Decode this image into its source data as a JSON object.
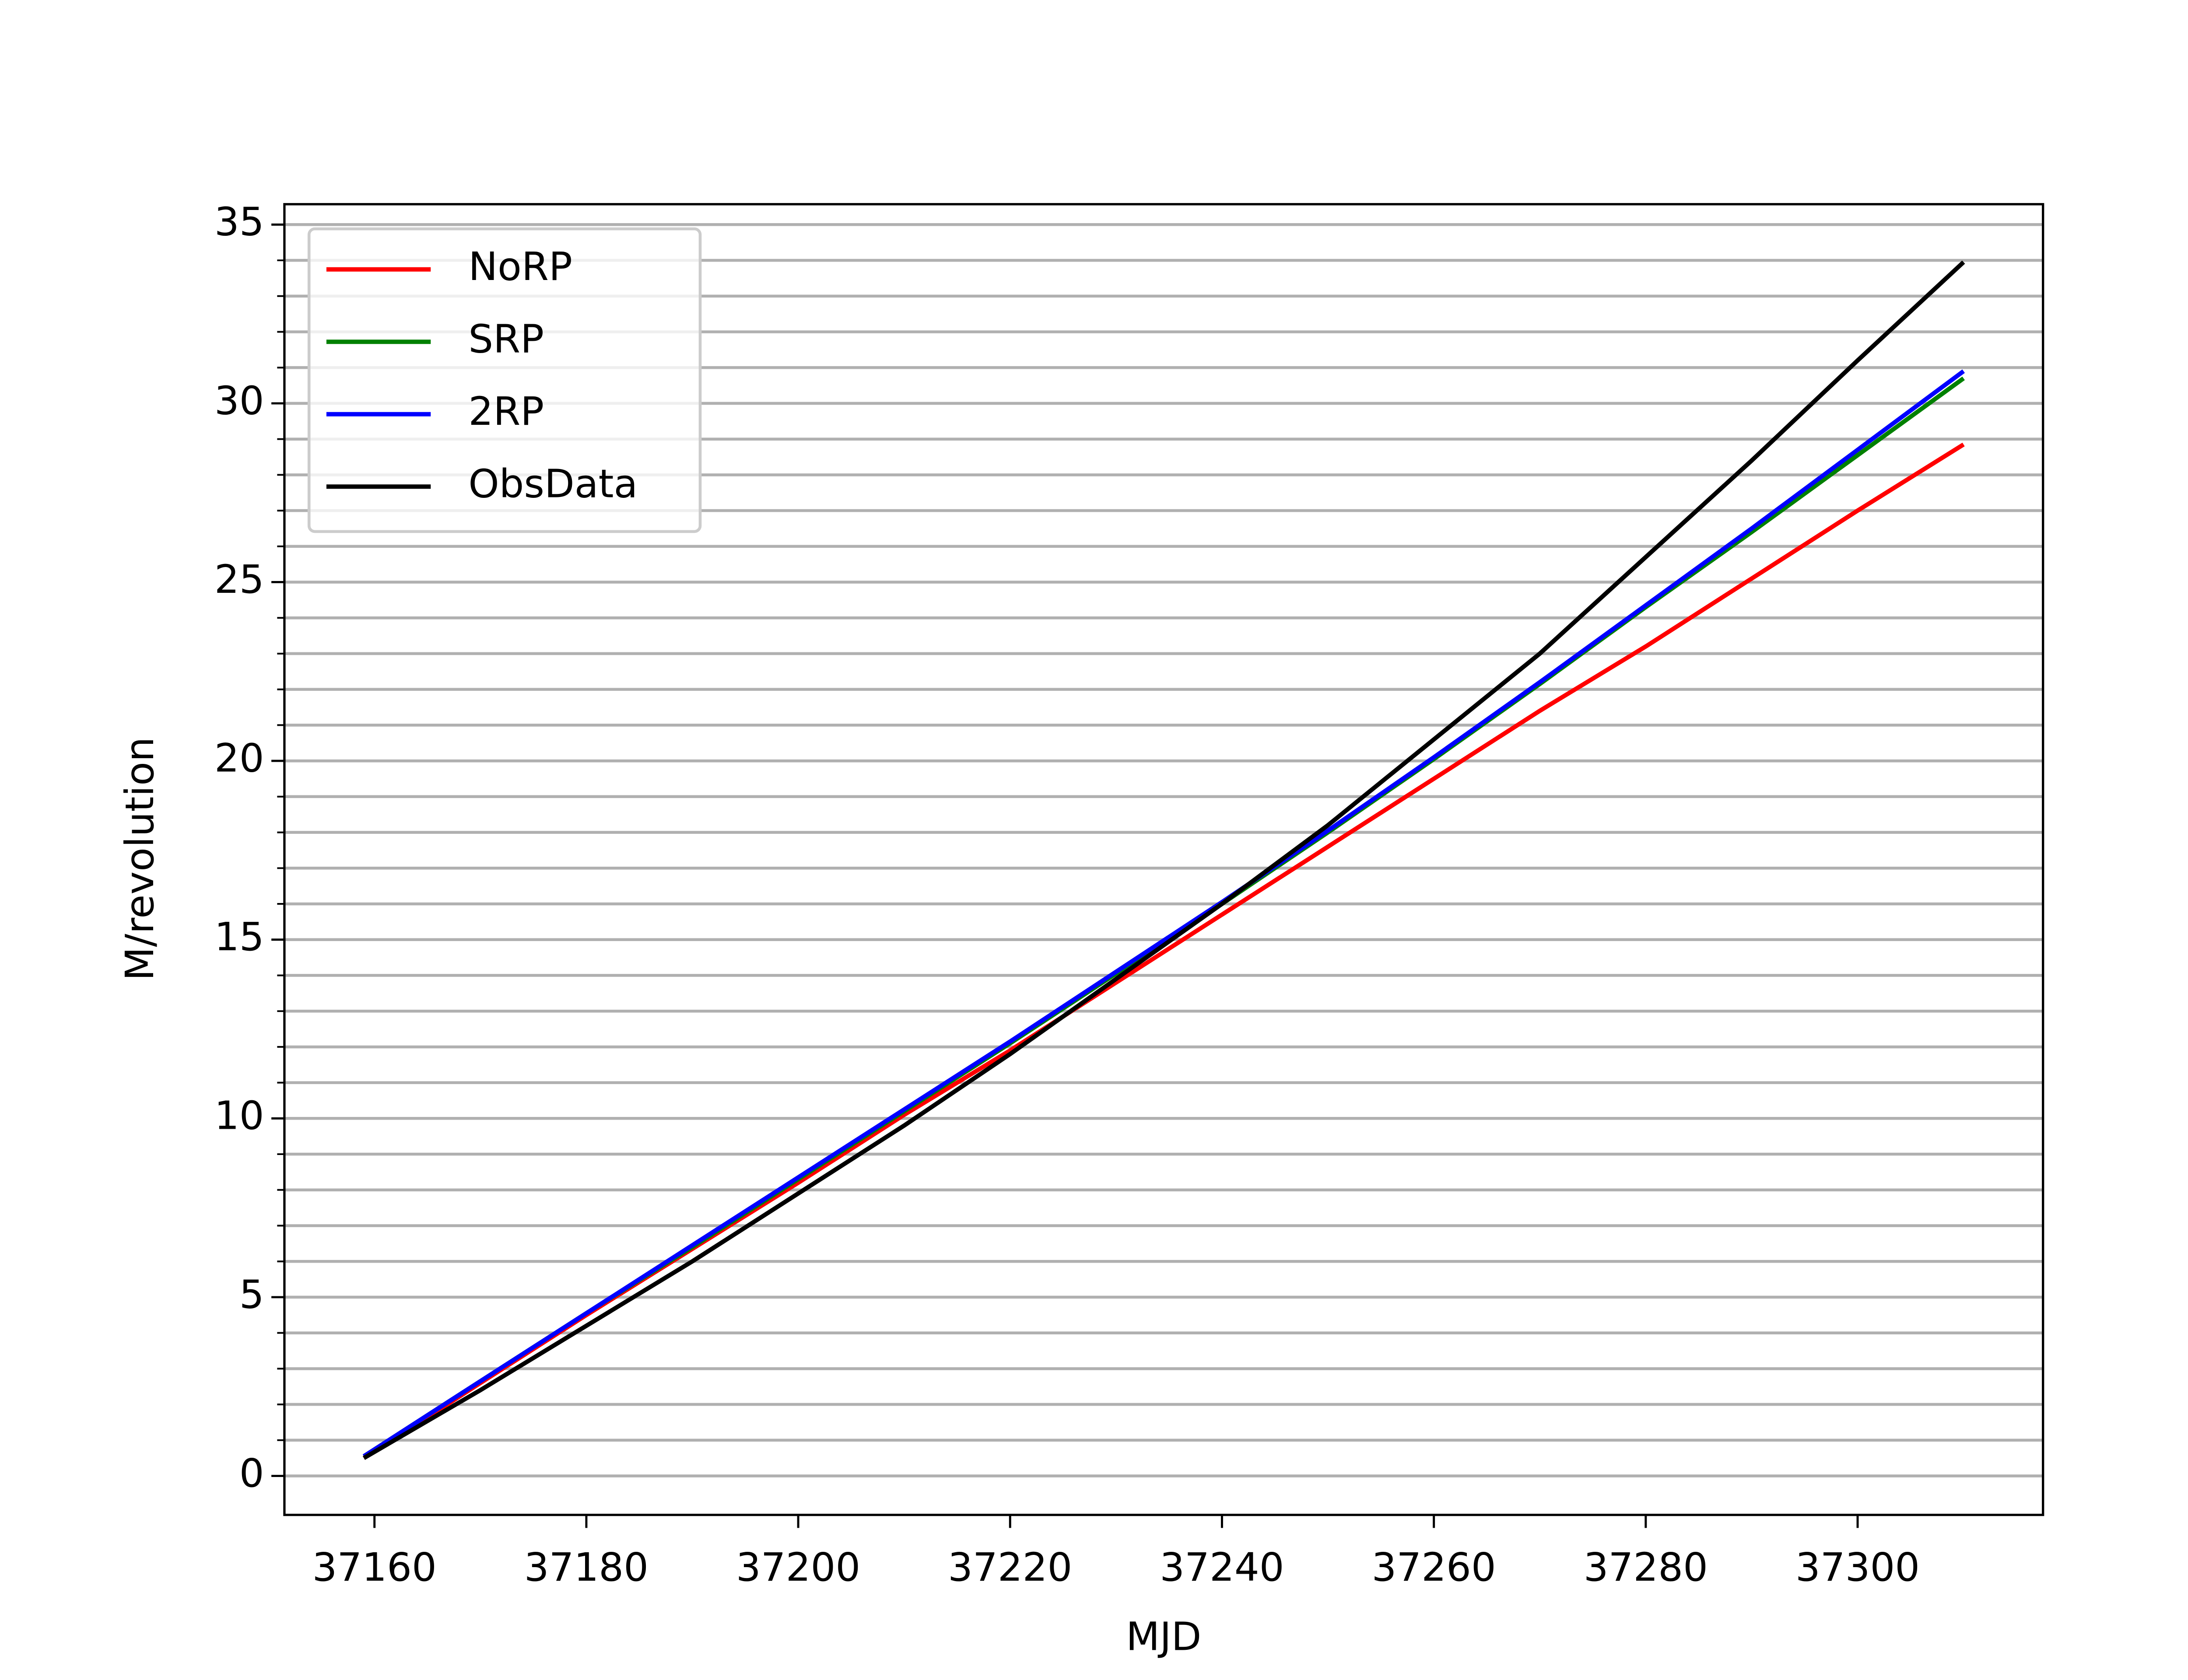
{
  "chart_data": {
    "type": "line",
    "x_label": "MJD",
    "y_label": "M/revolution",
    "x": [
      37159,
      37170,
      37180,
      37190,
      37200,
      37210,
      37220,
      37230,
      37240,
      37250,
      37260,
      37270,
      37280,
      37290,
      37300,
      37310
    ],
    "series": [
      {
        "name": "NoRP",
        "color": "#ff0000",
        "values": [
          0.5,
          2.6,
          4.5,
          6.35,
          8.2,
          10.1,
          11.9,
          13.8,
          15.7,
          17.6,
          19.5,
          21.4,
          23.2,
          25.1,
          27.0,
          28.85
        ]
      },
      {
        "name": "SRP",
        "color": "#008000",
        "values": [
          0.55,
          2.65,
          4.55,
          6.4,
          8.3,
          10.2,
          12.1,
          14.05,
          16.0,
          18.0,
          20.05,
          22.15,
          24.3,
          26.4,
          28.55,
          30.7
        ]
      },
      {
        "name": "2RP",
        "color": "#0000ff",
        "values": [
          0.55,
          2.65,
          4.55,
          6.45,
          8.35,
          10.25,
          12.15,
          14.1,
          16.05,
          18.05,
          20.1,
          22.2,
          24.35,
          26.5,
          28.7,
          30.9
        ]
      },
      {
        "name": "ObsData",
        "color": "#000000",
        "values": [
          0.5,
          2.4,
          4.2,
          6.0,
          7.9,
          9.8,
          11.8,
          13.9,
          16.0,
          18.2,
          20.6,
          23.0,
          25.7,
          28.4,
          31.2,
          33.95
        ]
      }
    ],
    "xlim": [
      37151.5,
      37317.5
    ],
    "ylim": [
      -1.09,
      35.57
    ],
    "xticks": [
      37160,
      37180,
      37200,
      37220,
      37240,
      37260,
      37280,
      37300
    ],
    "yticks": [
      0,
      5,
      10,
      15,
      20,
      25,
      30,
      35
    ],
    "yminorticks": [
      0,
      1,
      2,
      3,
      4,
      5,
      6,
      7,
      8,
      9,
      10,
      11,
      12,
      13,
      14,
      15,
      16,
      17,
      18,
      19,
      20,
      21,
      22,
      23,
      24,
      25,
      26,
      27,
      28,
      29,
      30,
      31,
      32,
      33,
      34,
      35
    ],
    "grid": true,
    "legend": "upper left"
  }
}
